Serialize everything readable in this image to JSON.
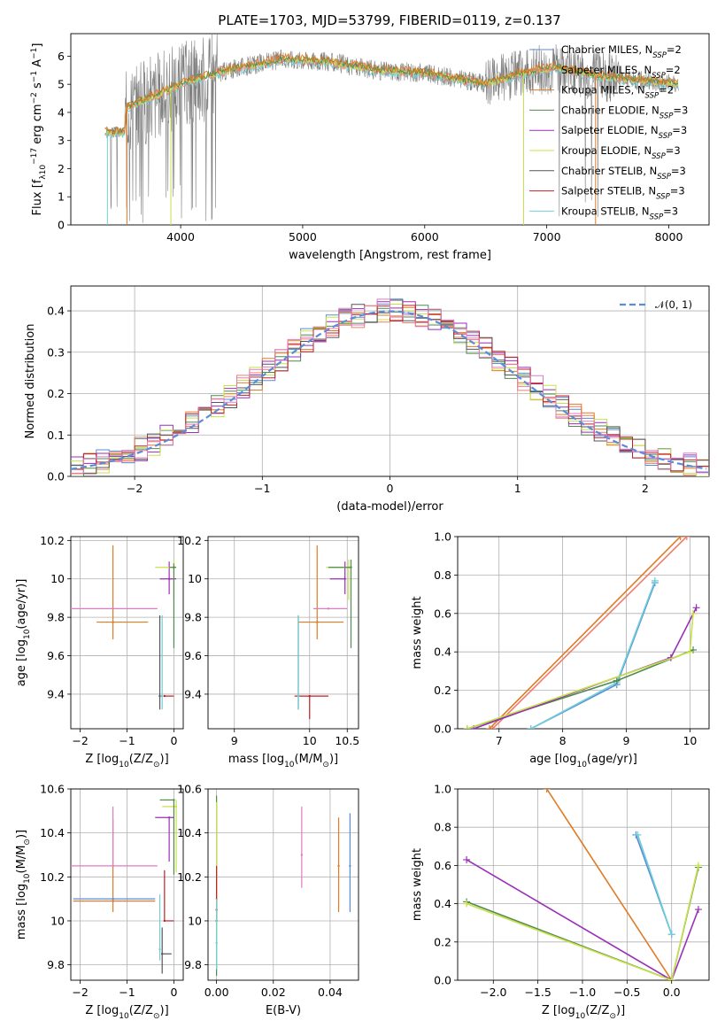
{
  "title": "PLATE=1703, MJD=53799, FIBERID=0119, z=0.137",
  "colors": {
    "Chabrier MILES": "#5b8bd9",
    "Salpeter MILES": "#f07c6c",
    "Kroupa MILES": "#e07b25",
    "Chabrier ELODIE": "#4f8a4f",
    "Salpeter ELODIE": "#9a2fb8",
    "Kroupa ELODIE": "#c8e04a",
    "Chabrier STELIB": "#555555",
    "Salpeter STELIB": "#c0202a",
    "Kroupa STELIB": "#6fcfd6",
    "Pink": "#e07bbf",
    "Gaussian": "#5b8bd9"
  },
  "chart_data": [
    {
      "id": "spectrum",
      "type": "line",
      "xlabel": "wavelength [Angstrom, rest frame]",
      "ylabel_parts": [
        "Flux [f",
        "λ",
        "10",
        "−17",
        " erg cm",
        "−2",
        " s",
        "−1",
        " A",
        "−1",
        "]"
      ],
      "xlim": [
        3100,
        8330
      ],
      "ylim": [
        0,
        6.8
      ],
      "xticks": [
        4000,
        5000,
        6000,
        7000,
        8000
      ],
      "yticks": [
        0,
        1,
        2,
        3,
        4,
        5,
        6
      ],
      "legend_location": "upper right",
      "legend": [
        {
          "name": "Chabrier MILES, N",
          "sub": "SSP",
          "tail": "=2",
          "color_key": "Chabrier MILES"
        },
        {
          "name": "Salpeter MILES, N",
          "sub": "SSP",
          "tail": "=2",
          "color_key": "Salpeter MILES"
        },
        {
          "name": "Kroupa MILES, N",
          "sub": "SSP",
          "tail": "=2",
          "color_key": "Kroupa MILES"
        },
        {
          "name": "Chabrier ELODIE, N",
          "sub": "SSP",
          "tail": "=3",
          "color_key": "Chabrier ELODIE"
        },
        {
          "name": "Salpeter ELODIE, N",
          "sub": "SSP",
          "tail": "=3",
          "color_key": "Salpeter ELODIE"
        },
        {
          "name": "Kroupa ELODIE, N",
          "sub": "SSP",
          "tail": "=3",
          "color_key": "Kroupa ELODIE"
        },
        {
          "name": "Chabrier STELIB, N",
          "sub": "SSP",
          "tail": "=3",
          "color_key": "Chabrier STELIB"
        },
        {
          "name": "Salpeter STELIB, N",
          "sub": "SSP",
          "tail": "=3",
          "color_key": "Salpeter STELIB"
        },
        {
          "name": "Kroupa STELIB, N",
          "sub": "SSP",
          "tail": "=3",
          "color_key": "Kroupa STELIB"
        }
      ],
      "data_series": {
        "name": "observed spectrum",
        "color": "#808080",
        "x_range": [
          3380,
          8080
        ],
        "noisy_below": 4300,
        "continuum": [
          [
            3380,
            3.3
          ],
          [
            3540,
            3.3
          ],
          [
            3560,
            4.2
          ],
          [
            3800,
            4.6
          ],
          [
            4000,
            5.0
          ],
          [
            4300,
            5.4
          ],
          [
            4500,
            5.6
          ],
          [
            4850,
            5.9
          ],
          [
            5200,
            5.8
          ],
          [
            5600,
            5.5
          ],
          [
            6000,
            5.4
          ],
          [
            6500,
            5.0
          ],
          [
            6800,
            5.4
          ],
          [
            7100,
            5.6
          ],
          [
            7400,
            5.3
          ],
          [
            8080,
            5.0
          ]
        ]
      },
      "model_drops": [
        {
          "x": 3400,
          "color_key": "Kroupa STELIB"
        },
        {
          "x": 3560,
          "color_key": "Kroupa MILES"
        },
        {
          "x": 3920,
          "color_key": "Kroupa ELODIE"
        },
        {
          "x": 6810,
          "color_key": "Kroupa ELODIE"
        },
        {
          "x": 7400,
          "color_key": "Kroupa MILES"
        }
      ]
    },
    {
      "id": "residuals",
      "type": "step",
      "xlabel": "(data-model)/error",
      "ylabel": "Normed distribution",
      "xlim": [
        -2.5,
        2.5
      ],
      "ylim": [
        0,
        0.46
      ],
      "xticks": [
        -2,
        -1,
        0,
        1,
        2
      ],
      "yticks": [
        0.0,
        0.1,
        0.2,
        0.3,
        0.4
      ],
      "bin_width": 0.1,
      "gaussian": {
        "label": "𝒩(0, 1)",
        "mu": 0,
        "sigma": 1
      },
      "histograms": [
        {
          "color_key": "Chabrier MILES",
          "seed": 1
        },
        {
          "color_key": "Salpeter MILES",
          "seed": 2
        },
        {
          "color_key": "Kroupa MILES",
          "seed": 3
        },
        {
          "color_key": "Chabrier ELODIE",
          "seed": 4
        },
        {
          "color_key": "Salpeter ELODIE",
          "seed": 5
        },
        {
          "color_key": "Kroupa ELODIE",
          "seed": 6
        },
        {
          "color_key": "Chabrier STELIB",
          "seed": 7
        },
        {
          "color_key": "Salpeter STELIB",
          "seed": 8
        },
        {
          "color_key": "Pink",
          "seed": 9
        }
      ]
    },
    {
      "id": "age_vs_Z",
      "type": "errorbar",
      "xlabel_parts": [
        "Z [log",
        "10",
        "(Z/Z",
        "⊙",
        ")]"
      ],
      "ylabel_parts": [
        "age  [log",
        "10",
        "(age/yr)]"
      ],
      "xlim": [
        -2.2,
        0.2
      ],
      "ylim": [
        9.22,
        10.22
      ],
      "xticks": [
        -2,
        -1,
        0
      ],
      "yticks": [
        9.4,
        9.6,
        9.8,
        10.0,
        10.2
      ],
      "points": [
        {
          "x": -1.3,
          "xerr": [
            0.35,
            0.75
          ],
          "y": 9.775,
          "yerr": [
            0.09,
            0.4
          ],
          "color_key": "Kroupa MILES"
        },
        {
          "x": -1.3,
          "xerr": [
            1.0,
            0.95
          ],
          "y": 9.845,
          "yerr": [
            0.0,
            0.0
          ],
          "color_key": "Pink"
        },
        {
          "x": -0.1,
          "xerr": [
            0.2,
            0.15
          ],
          "y": 10.0,
          "yerr": [
            0.08,
            0.09
          ],
          "color_key": "Salpeter ELODIE"
        },
        {
          "x": 0.0,
          "xerr": [
            0.4,
            0.05
          ],
          "y": 10.06,
          "yerr": [
            0.17,
            0.04
          ],
          "color_key": "Kroupa ELODIE"
        },
        {
          "x": 0.0,
          "xerr": [
            0.1,
            0.05
          ],
          "y": 10.06,
          "yerr": [
            0.42,
            0.02
          ],
          "color_key": "Chabrier ELODIE"
        },
        {
          "x": -0.2,
          "xerr": [
            0.0,
            0.2
          ],
          "y": 9.39,
          "yerr": [
            0.0,
            0.0
          ],
          "color_key": "Salpeter STELIB"
        },
        {
          "x": -0.3,
          "xerr": [
            0.0,
            0.0
          ],
          "y": 9.39,
          "yerr": [
            0.07,
            0.42
          ],
          "color_key": "Chabrier STELIB"
        },
        {
          "x": -0.25,
          "xerr": [
            0.0,
            0.0
          ],
          "y": 9.39,
          "yerr": [
            0.07,
            0.42
          ],
          "color_key": "Kroupa STELIB"
        }
      ]
    },
    {
      "id": "age_vs_mass",
      "type": "errorbar",
      "xlabel_parts": [
        "mass [log",
        "10",
        "(M/M",
        "⊙",
        ")]"
      ],
      "ylabel_parts": [],
      "xlim": [
        8.65,
        10.65
      ],
      "ylim": [
        9.22,
        10.22
      ],
      "xticks": [
        9.0,
        10.0,
        10.5
      ],
      "yticks": [
        9.4,
        9.6,
        9.8,
        10.0,
        10.2
      ],
      "points": [
        {
          "x": 10.1,
          "xerr": [
            0.25,
            0.35
          ],
          "y": 9.775,
          "yerr": [
            0.09,
            0.4
          ],
          "color_key": "Kroupa MILES"
        },
        {
          "x": 10.25,
          "xerr": [
            0.2,
            0.25
          ],
          "y": 9.845,
          "yerr": [
            0.0,
            0.0
          ],
          "color_key": "Pink"
        },
        {
          "x": 10.47,
          "xerr": [
            0.2,
            0.0
          ],
          "y": 10.0,
          "yerr": [
            0.08,
            0.09
          ],
          "color_key": "Salpeter ELODIE"
        },
        {
          "x": 10.52,
          "xerr": [
            0.3,
            0.03
          ],
          "y": 10.06,
          "yerr": [
            0.17,
            0.04
          ],
          "color_key": "Kroupa ELODIE"
        },
        {
          "x": 10.55,
          "xerr": [
            0.3,
            0.0
          ],
          "y": 10.06,
          "yerr": [
            0.42,
            0.04
          ],
          "color_key": "Chabrier ELODIE"
        },
        {
          "x": 10.0,
          "xerr": [
            0.2,
            0.25
          ],
          "y": 9.39,
          "yerr": [
            0.12,
            0.0
          ],
          "color_key": "Salpeter STELIB"
        },
        {
          "x": 9.85,
          "xerr": [
            0.0,
            0.0
          ],
          "y": 9.39,
          "yerr": [
            0.07,
            0.42
          ],
          "color_key": "Chabrier STELIB"
        },
        {
          "x": 9.85,
          "xerr": [
            0.0,
            0.0
          ],
          "y": 9.39,
          "yerr": [
            0.07,
            0.42
          ],
          "color_key": "Kroupa STELIB"
        }
      ]
    },
    {
      "id": "weight_vs_age",
      "type": "line",
      "xlabel_parts": [
        "age  [log",
        "10",
        "(age/yr)]"
      ],
      "ylabel": "mass weight",
      "xlim": [
        6.35,
        10.3
      ],
      "ylim": [
        0,
        1.0
      ],
      "xticks": [
        7,
        8,
        9,
        10
      ],
      "yticks": [
        0.0,
        0.2,
        0.4,
        0.6,
        0.8,
        1.0
      ],
      "series": [
        {
          "color_key": "Salpeter MILES",
          "x": [
            6.9,
            9.95
          ],
          "y": [
            0.0,
            1.0
          ]
        },
        {
          "color_key": "Kroupa MILES",
          "x": [
            6.85,
            9.85
          ],
          "y": [
            0.0,
            1.0
          ]
        },
        {
          "color_key": "Chabrier MILES",
          "x": [
            7.5,
            8.85,
            9.45
          ],
          "y": [
            0.0,
            0.23,
            0.76
          ]
        },
        {
          "color_key": "Kroupa STELIB",
          "x": [
            7.5,
            8.85,
            9.45
          ],
          "y": [
            0.0,
            0.24,
            0.77
          ]
        },
        {
          "color_key": "Chabrier ELODIE",
          "x": [
            6.5,
            8.85,
            10.05
          ],
          "y": [
            0.0,
            0.25,
            0.41
          ]
        },
        {
          "color_key": "Salpeter ELODIE",
          "x": [
            6.6,
            9.7,
            10.1
          ],
          "y": [
            0.0,
            0.37,
            0.63
          ]
        },
        {
          "color_key": "Kroupa ELODIE",
          "x": [
            6.5,
            10.0,
            10.05
          ],
          "y": [
            0.0,
            0.4,
            0.6
          ]
        }
      ]
    },
    {
      "id": "mass_vs_Z",
      "type": "errorbar",
      "xlabel_parts": [
        "Z [log",
        "10",
        "(Z/Z",
        "⊙",
        ")]"
      ],
      "ylabel_parts": [
        "mass [log",
        "10",
        "(M/M",
        "⊙",
        ")]"
      ],
      "xlim": [
        -2.2,
        0.2
      ],
      "ylim": [
        9.73,
        10.6
      ],
      "xticks": [
        -2,
        -1,
        0
      ],
      "yticks": [
        9.8,
        10.0,
        10.2,
        10.4,
        10.6
      ],
      "points": [
        {
          "x": -1.3,
          "xerr": [
            0.85,
            0.9
          ],
          "y": 10.09,
          "yerr": [
            0.05,
            0.37
          ],
          "color_key": "Kroupa MILES"
        },
        {
          "x": -1.3,
          "xerr": [
            0.85,
            0.9
          ],
          "y": 10.1,
          "yerr": [
            0.0,
            0.0
          ],
          "color_key": "Chabrier MILES"
        },
        {
          "x": -1.3,
          "xerr": [
            1.0,
            0.95
          ],
          "y": 10.25,
          "yerr": [
            0.0,
            0.27
          ],
          "color_key": "Pink"
        },
        {
          "x": -0.1,
          "xerr": [
            0.3,
            0.1
          ],
          "y": 10.47,
          "yerr": [
            0.2,
            0.0
          ],
          "color_key": "Salpeter ELODIE"
        },
        {
          "x": 0.05,
          "xerr": [
            0.3,
            0.0
          ],
          "y": 10.52,
          "yerr": [
            0.3,
            0.03
          ],
          "color_key": "Kroupa ELODIE"
        },
        {
          "x": 0.0,
          "xerr": [
            0.3,
            0.0
          ],
          "y": 10.55,
          "yerr": [
            0.34,
            0.0
          ],
          "color_key": "Chabrier ELODIE"
        },
        {
          "x": -0.2,
          "xerr": [
            0.0,
            0.2
          ],
          "y": 10.0,
          "yerr": [
            0.0,
            0.23
          ],
          "color_key": "Salpeter STELIB"
        },
        {
          "x": -0.25,
          "xerr": [
            0.0,
            0.2
          ],
          "y": 9.85,
          "yerr": [
            0.09,
            0.12
          ],
          "color_key": "Chabrier STELIB"
        },
        {
          "x": -0.3,
          "xerr": [
            0.0,
            0.0
          ],
          "y": 9.87,
          "yerr": [
            0.05,
            0.25
          ],
          "color_key": "Kroupa STELIB"
        }
      ]
    },
    {
      "id": "mass_vs_EBV",
      "type": "errorbar",
      "xlabel": "E(B-V)",
      "xlim": [
        -0.003,
        0.05
      ],
      "ylim": [
        9.73,
        10.6
      ],
      "xticks": [
        0.0,
        0.02,
        0.04
      ],
      "yticks": [
        9.8,
        10.0,
        10.2,
        10.4,
        10.6
      ],
      "xtick_labels": [
        "0.00",
        "0.02",
        "0.04"
      ],
      "points": [
        {
          "x": 0.0,
          "y": 10.0,
          "yerr": [
            0.25,
            0.57
          ],
          "color_key": "Chabrier ELODIE"
        },
        {
          "x": 0.0,
          "y": 10.1,
          "yerr": [
            0.15,
            0.44
          ],
          "color_key": "Kroupa ELODIE"
        },
        {
          "x": 0.0,
          "y": 10.05,
          "yerr": [
            0.05,
            0.2
          ],
          "color_key": "Salpeter STELIB"
        },
        {
          "x": 0.0,
          "y": 9.9,
          "yerr": [
            0.12,
            0.2
          ],
          "color_key": "Kroupa STELIB"
        },
        {
          "x": 0.03,
          "y": 10.3,
          "yerr": [
            0.15,
            0.22
          ],
          "color_key": "Pink"
        },
        {
          "x": 0.043,
          "y": 10.25,
          "yerr": [
            0.21,
            0.22
          ],
          "color_key": "Kroupa MILES"
        },
        {
          "x": 0.047,
          "y": 10.25,
          "yerr": [
            0.21,
            0.24
          ],
          "color_key": "Chabrier MILES"
        }
      ]
    },
    {
      "id": "weight_vs_Z",
      "type": "line",
      "xlabel_parts": [
        "Z [log",
        "10",
        "(Z/Z",
        "⊙",
        ")]"
      ],
      "ylabel": "mass weight",
      "xlim": [
        -2.4,
        0.42
      ],
      "ylim": [
        0,
        1.0
      ],
      "xticks": [
        -2.0,
        -1.5,
        -1.0,
        -0.5,
        0.0
      ],
      "xtick_labels": [
        "−2.0",
        "−1.5",
        "−1.0",
        "−0.5",
        "0.0"
      ],
      "yticks": [
        0.0,
        0.2,
        0.4,
        0.6,
        0.8,
        1.0
      ],
      "series": [
        {
          "color_key": "Kroupa MILES",
          "x": [
            -1.4,
            0.0
          ],
          "y": [
            1.0,
            0.0
          ]
        },
        {
          "color_key": "Chabrier MILES",
          "x": [
            -0.4,
            0.0
          ],
          "y": [
            0.76,
            0.24
          ]
        },
        {
          "color_key": "Kroupa STELIB",
          "x": [
            -0.38,
            0.0
          ],
          "y": [
            0.76,
            0.24
          ]
        },
        {
          "color_key": "Salpeter ELODIE",
          "x": [
            -2.3,
            0.0,
            0.3
          ],
          "y": [
            0.63,
            0.0,
            0.37
          ]
        },
        {
          "color_key": "Chabrier ELODIE",
          "x": [
            -2.3,
            0.0,
            0.3
          ],
          "y": [
            0.41,
            0.0,
            0.59
          ]
        },
        {
          "color_key": "Kroupa ELODIE",
          "x": [
            -2.3,
            0.0,
            0.3
          ],
          "y": [
            0.4,
            0.0,
            0.6
          ]
        }
      ]
    }
  ]
}
